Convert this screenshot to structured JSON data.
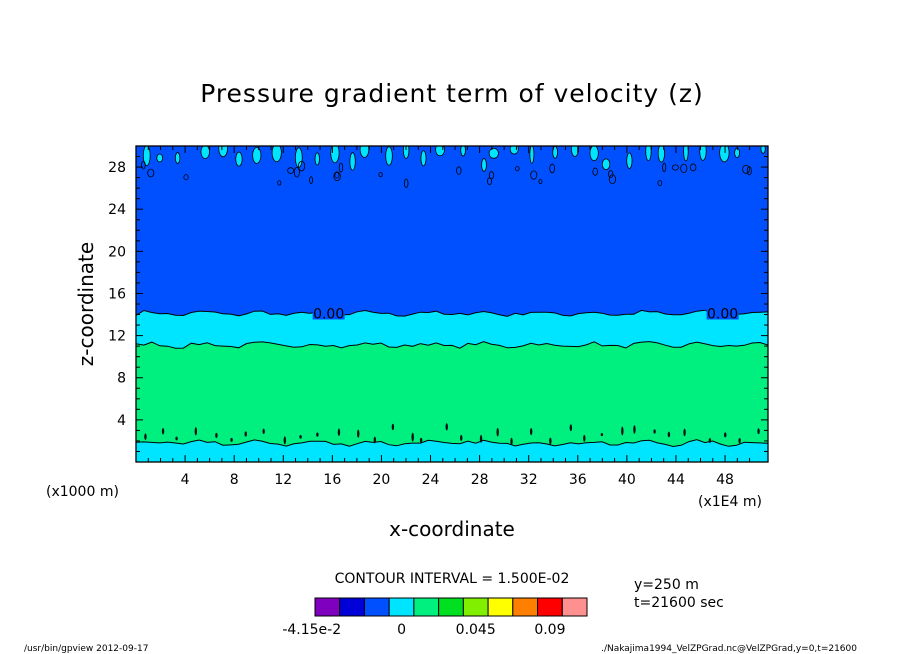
{
  "chart_data": {
    "type": "contour",
    "title": "Pressure gradient term of velocity (z)",
    "xlabel": "x-coordinate",
    "ylabel": "z-coordinate",
    "x_unit_left": "(x1000 m)",
    "x_unit_right": "(x1E4 m)",
    "xlim": [
      0,
      51.5
    ],
    "ylim": [
      0,
      30
    ],
    "x_ticks": [
      4,
      8,
      12,
      16,
      20,
      24,
      28,
      32,
      36,
      40,
      44,
      48
    ],
    "y_ticks": [
      4,
      8,
      12,
      16,
      20,
      24,
      28
    ],
    "contour_interval_text": "CONTOUR INTERVAL = 1.500E-02",
    "contour_label": "0.00",
    "bands": [
      {
        "z_from": 0,
        "z_to": 1.8,
        "level": "0 to 0.015",
        "color": "#00e5ff"
      },
      {
        "z_from": 1.8,
        "z_to": 11.1,
        "level": "0.015 to 0.03",
        "color": "#00f080"
      },
      {
        "z_from": 11.1,
        "z_to": 14.1,
        "level": "0 to 0.015",
        "color": "#00e5ff"
      },
      {
        "z_from": 14.1,
        "z_to": 30,
        "level": "-0.015 to 0",
        "color": "#0050ff"
      }
    ],
    "colorbar": {
      "colors": [
        "#8000c0",
        "#0000d8",
        "#0050ff",
        "#00e5ff",
        "#00f080",
        "#00e020",
        "#80f000",
        "#ffff00",
        "#ff8000",
        "#ff0000",
        "#ff9090"
      ],
      "labels": [
        "-4.15e-2",
        "0",
        "0.045",
        "0.09"
      ]
    },
    "info": {
      "y": "y=250 m",
      "t": "t=21600 sec"
    },
    "footer_left": "/usr/bin/gpview  2012-09-17",
    "footer_right": "./Nakajima1994_VelZPGrad.nc@VelZPGrad,y=0,t=21600"
  }
}
